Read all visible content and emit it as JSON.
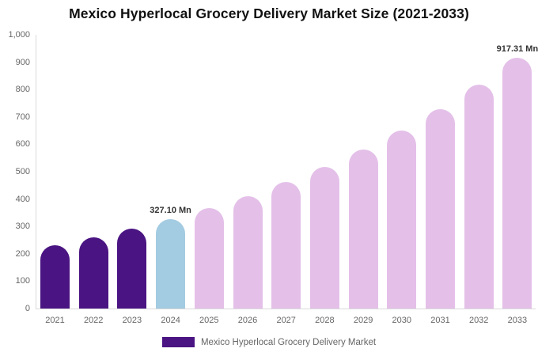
{
  "chart_data": {
    "type": "bar",
    "title": "Mexico Hyperlocal Grocery Delivery Market Size (2021-2033)",
    "categories": [
      "2021",
      "2022",
      "2023",
      "2024",
      "2025",
      "2026",
      "2027",
      "2028",
      "2029",
      "2030",
      "2031",
      "2032",
      "2033"
    ],
    "values": [
      232.0,
      260.2,
      291.7,
      327.1,
      366.8,
      411.3,
      461.3,
      517.3,
      580.0,
      650.4,
      729.4,
      817.9,
      917.31
    ],
    "unit": "Mn",
    "value_labels": [
      {
        "index": 3,
        "text": "327.10 Mn"
      },
      {
        "index": 12,
        "text": "917.31 Mn"
      }
    ],
    "ylim": [
      0,
      1000
    ],
    "ytick_step": 100,
    "yticks": [
      "0",
      "100",
      "200",
      "300",
      "400",
      "500",
      "600",
      "700",
      "800",
      "900",
      "1,000"
    ],
    "grid": false,
    "bar_color_roles": [
      "historical",
      "historical",
      "historical",
      "base_year",
      "forecast",
      "forecast",
      "forecast",
      "forecast",
      "forecast",
      "forecast",
      "forecast",
      "forecast",
      "forecast"
    ],
    "colors": {
      "historical": "#4a1482",
      "base_year": "#a3cbe1",
      "forecast": "#e4c0e9"
    },
    "legend": {
      "position": "bottom",
      "label": "Mexico Hyperlocal Grocery Delivery Market",
      "swatch_color": "#4a1482"
    }
  }
}
